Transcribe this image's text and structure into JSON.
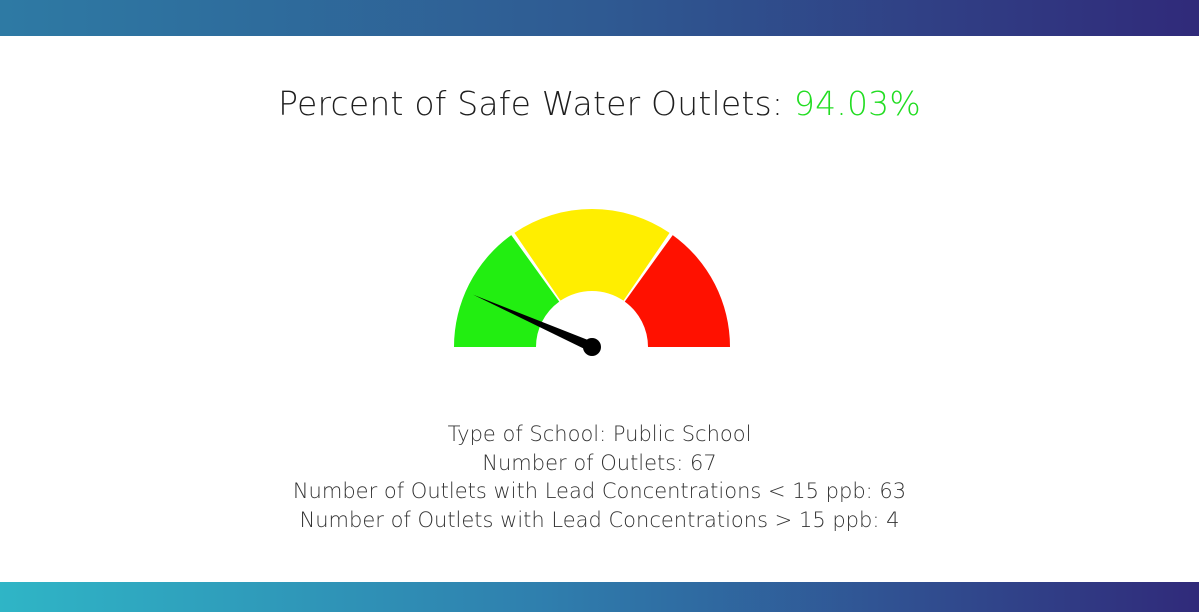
{
  "header": {
    "title_label": "Percent of Safe Water Outlets:",
    "percent_value": "94.03%"
  },
  "gauge": {
    "segments": [
      {
        "name": "green",
        "color": "#22ee11"
      },
      {
        "name": "yellow",
        "color": "#ffee00"
      },
      {
        "name": "red",
        "color": "#ff1100"
      }
    ],
    "needle_value_percent": 94.03
  },
  "info": {
    "school_type": "Type of School: Public School",
    "outlet_count": "Number of Outlets: 67",
    "below_threshold": "Number of Outlets with Lead Concentrations < 15 ppb: 63",
    "above_threshold": "Number of Outlets with Lead Concentrations > 15 ppb: 4"
  },
  "colors": {
    "accent_green": "#22dd22",
    "top_bar": "#2f5a92",
    "bottom_bar": "#2f7fae"
  }
}
